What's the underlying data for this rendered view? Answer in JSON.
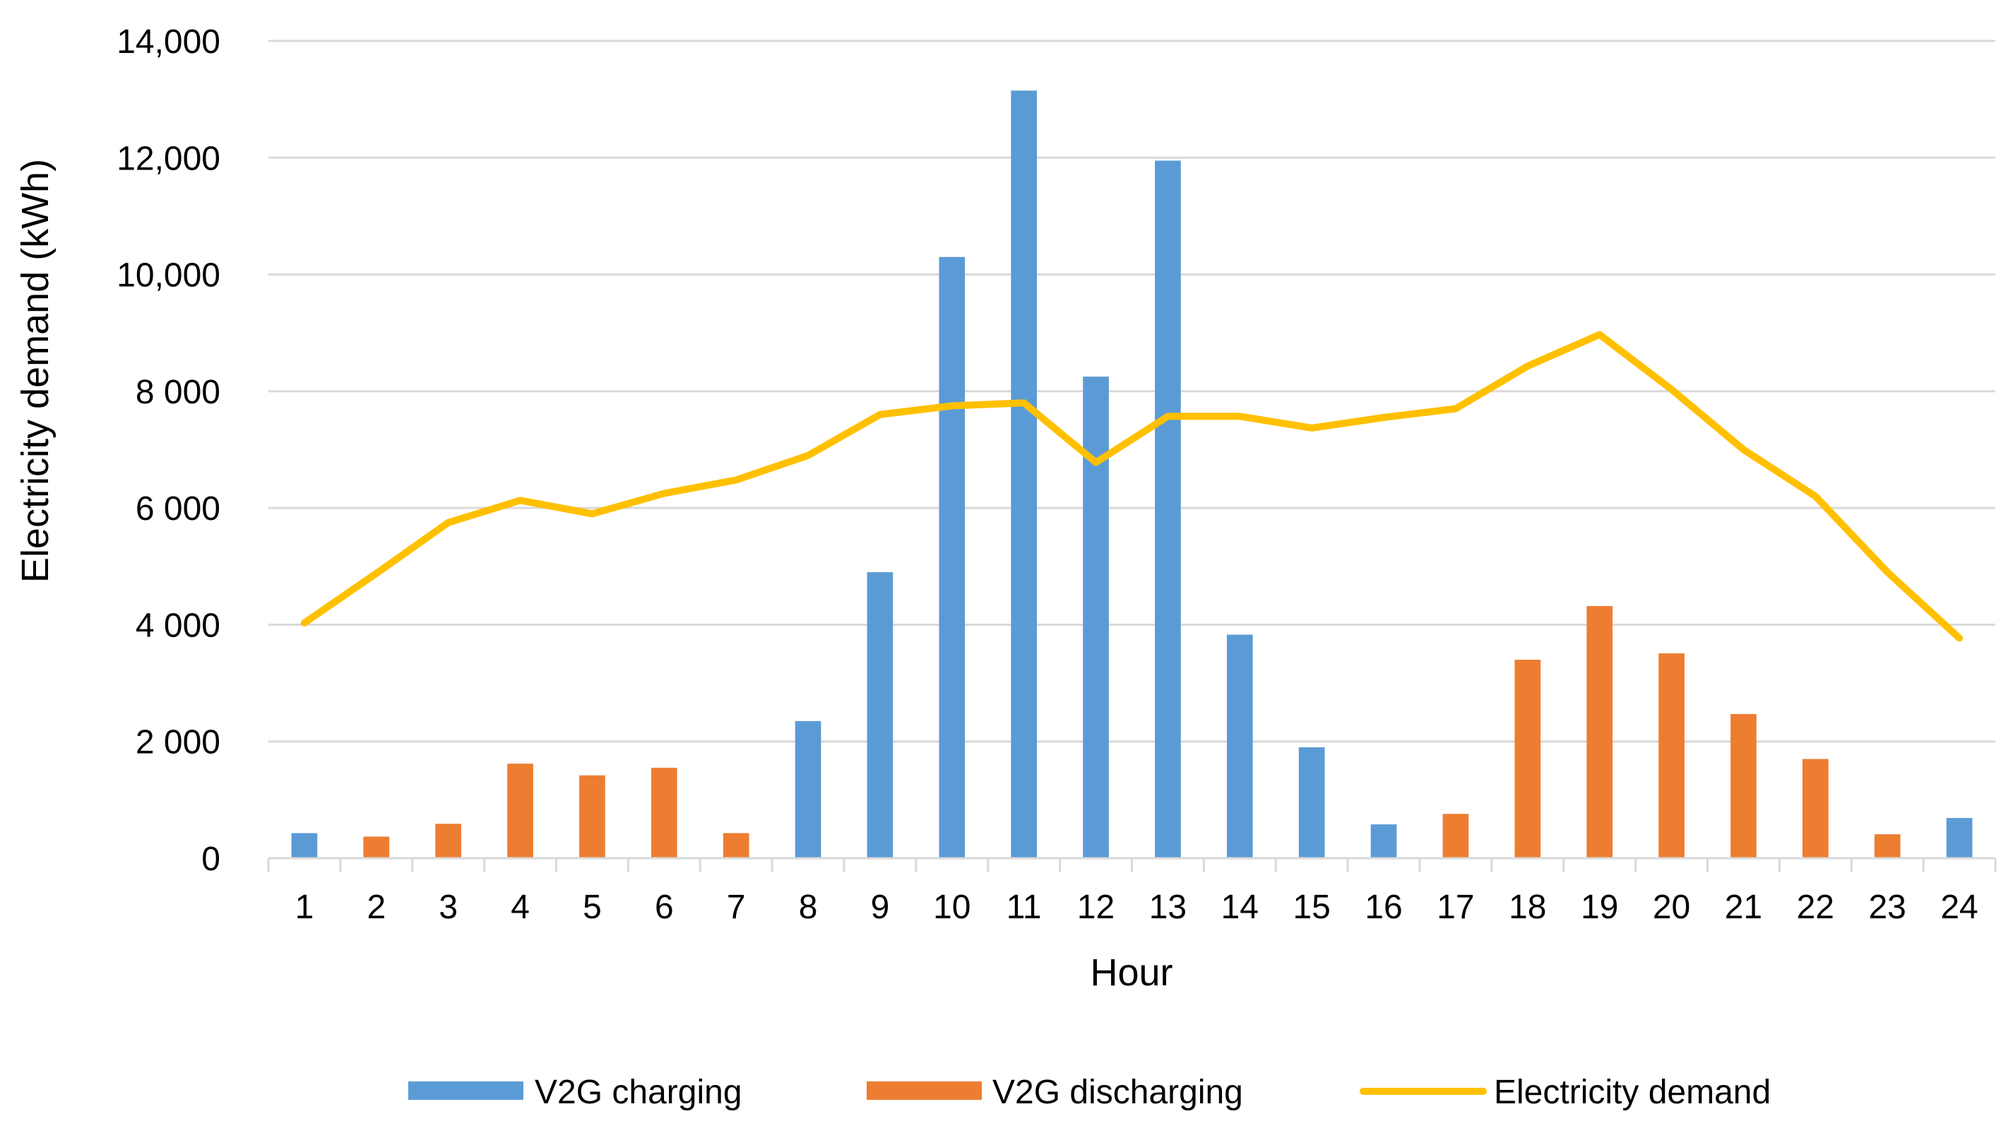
{
  "chart_data": {
    "type": "bar",
    "title": "",
    "xlabel": "Hour",
    "ylabel": "Electricity demand (kWh)",
    "ylim": [
      0,
      14000
    ],
    "yticks": [
      0,
      2000,
      4000,
      6000,
      8000,
      10000,
      12000,
      14000
    ],
    "ytick_labels": [
      "0",
      "2 000",
      "4 000",
      "6 000",
      "8 000",
      "10,000",
      "12,000",
      "14,000"
    ],
    "categories": [
      "1",
      "2",
      "3",
      "4",
      "5",
      "6",
      "7",
      "8",
      "9",
      "10",
      "11",
      "12",
      "13",
      "14",
      "15",
      "16",
      "17",
      "18",
      "19",
      "20",
      "21",
      "22",
      "23",
      "24"
    ],
    "grid": true,
    "legend_position": "bottom",
    "bars": [
      {
        "value": 430,
        "series": "V2G charging"
      },
      {
        "value": 370,
        "series": "V2G discharging"
      },
      {
        "value": 590,
        "series": "V2G discharging"
      },
      {
        "value": 1620,
        "series": "V2G discharging"
      },
      {
        "value": 1420,
        "series": "V2G discharging"
      },
      {
        "value": 1550,
        "series": "V2G discharging"
      },
      {
        "value": 430,
        "series": "V2G discharging"
      },
      {
        "value": 2350,
        "series": "V2G charging"
      },
      {
        "value": 4900,
        "series": "V2G charging"
      },
      {
        "value": 10300,
        "series": "V2G charging"
      },
      {
        "value": 13150,
        "series": "V2G charging"
      },
      {
        "value": 8250,
        "series": "V2G charging"
      },
      {
        "value": 11950,
        "series": "V2G charging"
      },
      {
        "value": 3830,
        "series": "V2G charging"
      },
      {
        "value": 1900,
        "series": "V2G charging"
      },
      {
        "value": 580,
        "series": "V2G charging"
      },
      {
        "value": 760,
        "series": "V2G discharging"
      },
      {
        "value": 3400,
        "series": "V2G discharging"
      },
      {
        "value": 4320,
        "series": "V2G discharging"
      },
      {
        "value": 3510,
        "series": "V2G discharging"
      },
      {
        "value": 2470,
        "series": "V2G discharging"
      },
      {
        "value": 1700,
        "series": "V2G discharging"
      },
      {
        "value": 410,
        "series": "V2G discharging"
      },
      {
        "value": 690,
        "series": "V2G charging"
      }
    ],
    "series": [
      {
        "name": "V2G charging",
        "kind": "bar",
        "color": "#5B9BD5",
        "values": [
          430,
          0,
          0,
          0,
          0,
          0,
          0,
          2350,
          4900,
          10300,
          13150,
          8250,
          11950,
          3830,
          1900,
          580,
          0,
          0,
          0,
          0,
          0,
          0,
          0,
          690
        ]
      },
      {
        "name": "V2G discharging",
        "kind": "bar",
        "color": "#ED7D31",
        "values": [
          0,
          370,
          590,
          1620,
          1420,
          1550,
          430,
          0,
          0,
          0,
          0,
          0,
          0,
          0,
          0,
          0,
          760,
          3400,
          4320,
          3510,
          2470,
          1700,
          410,
          0
        ]
      },
      {
        "name": "Electricity demand",
        "kind": "line",
        "color": "#FFC000",
        "values": [
          4030,
          4880,
          5750,
          6130,
          5900,
          6250,
          6480,
          6900,
          7600,
          7750,
          7800,
          6780,
          7570,
          7570,
          7370,
          7550,
          7700,
          8430,
          8970,
          8030,
          7000,
          6200,
          4900,
          3770
        ]
      }
    ],
    "legend": [
      {
        "label": "V2G charging",
        "color": "#5B9BD5",
        "kind": "bar"
      },
      {
        "label": "V2G discharging",
        "color": "#ED7D31",
        "kind": "bar"
      },
      {
        "label": "Electricity demand",
        "color": "#FFC000",
        "kind": "line"
      }
    ]
  }
}
